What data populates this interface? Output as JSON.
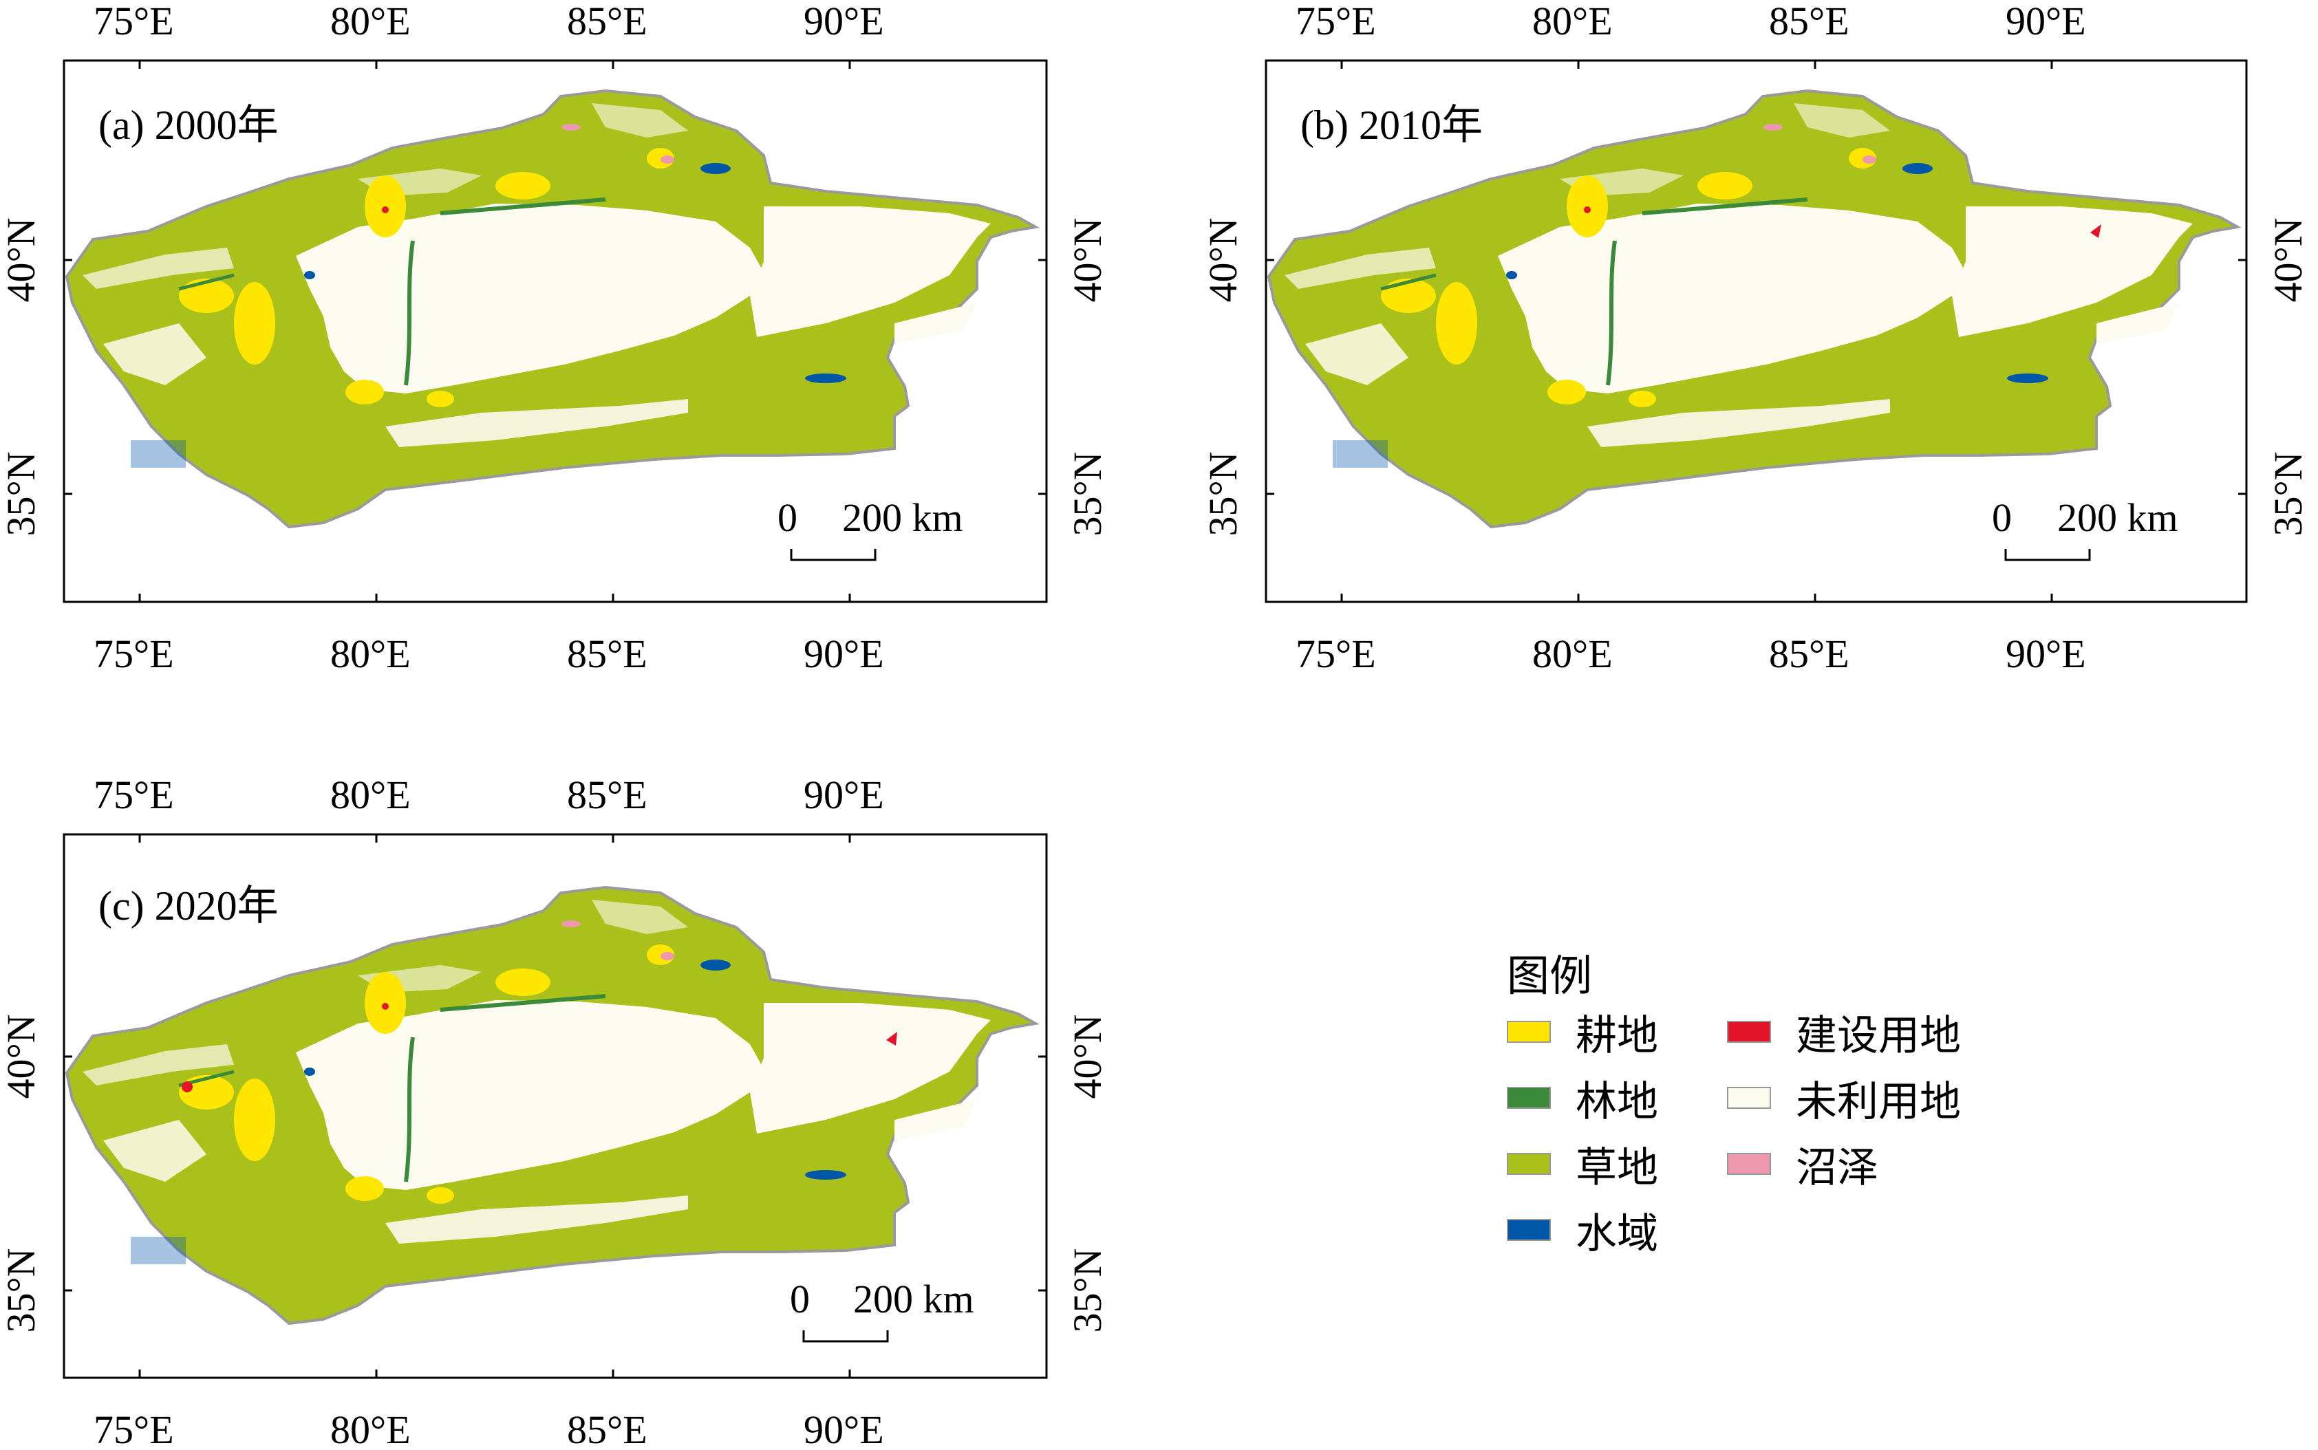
{
  "panels": [
    {
      "label": "(a) 2000年",
      "has_east_symbol": false,
      "has_e2": false
    },
    {
      "label": "(b) 2010年",
      "has_east_symbol": true,
      "has_e2": false
    },
    {
      "label": "(c) 2020年",
      "has_east_symbol": true,
      "has_e2": true
    }
  ],
  "axes": {
    "lon_ticks": [
      "75°E",
      "80°E",
      "85°E",
      "90°E"
    ],
    "lat_ticks": [
      "40°N",
      "35°N"
    ]
  },
  "scale_bar": {
    "zero": "0",
    "distance": "200 km"
  },
  "legend": {
    "title": "图例",
    "items": [
      {
        "name": "耕地",
        "color": "#ffe600"
      },
      {
        "name": "林地",
        "color": "#3a8a3a"
      },
      {
        "name": "草地",
        "color": "#a9c11a"
      },
      {
        "name": "水域",
        "color": "#0057a8"
      },
      {
        "name": "建设用地",
        "color": "#e3142a"
      },
      {
        "name": "未利用地",
        "color": "#fbfbef"
      },
      {
        "name": "沼泽",
        "color": "#ee98b0"
      }
    ]
  },
  "colors": {
    "cropland": "#ffe600",
    "forest": "#3a8a3a",
    "grassland": "#a9c11a",
    "water": "#0057a8",
    "construction": "#e3142a",
    "unused": "#fbfbef",
    "marsh": "#ee98b0",
    "boundary": "#9a9a9a"
  }
}
